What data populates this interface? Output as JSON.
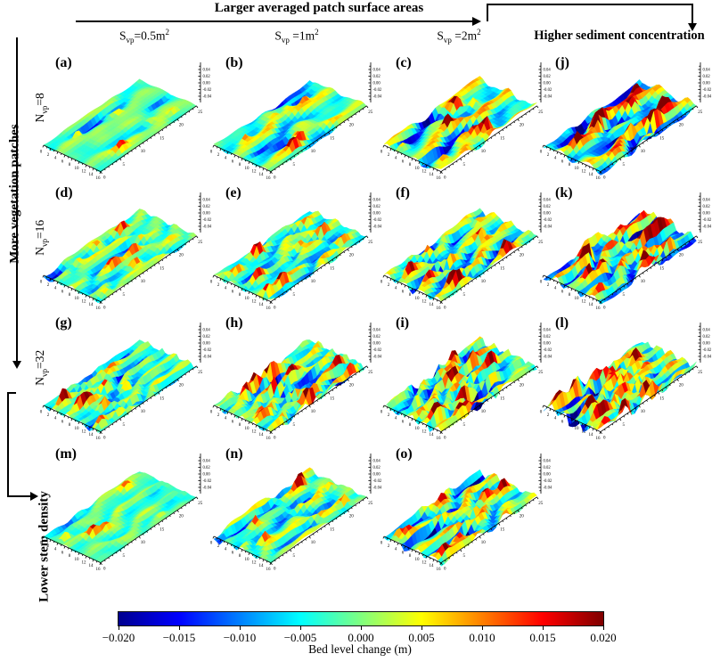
{
  "annotations": {
    "top": "Larger averaged patch surface areas",
    "right": "Higher sediment concentration",
    "left": "More vegetation patches",
    "bottom_left": "Lower stem density"
  },
  "col_headers": [
    {
      "pre": "S",
      "sub": "vp",
      "mid": "=0.5m",
      "sup": "2"
    },
    {
      "pre": "S",
      "sub": "vp",
      "mid": " =1m",
      "sup": "2"
    },
    {
      "pre": "S",
      "sub": "vp",
      "mid": " =2m",
      "sup": "2"
    }
  ],
  "row_headers": [
    {
      "pre": "N",
      "sub": "vp",
      "mid": "=8"
    },
    {
      "pre": "N",
      "sub": "vp",
      "mid": "=16"
    },
    {
      "pre": "N",
      "sub": "vp",
      "mid": "=32"
    }
  ],
  "axes": {
    "x_ticks": [
      "0",
      "2",
      "4",
      "6",
      "8",
      "10",
      "12",
      "14",
      "16"
    ],
    "y_ticks": [
      "0",
      "5",
      "10",
      "15",
      "20",
      "25"
    ],
    "z_ticks": [
      "0.04",
      "0.02",
      "0.00",
      "-0.02",
      "-0.04"
    ]
  },
  "colorbar": {
    "ticks": [
      "−0.020",
      "−0.015",
      "−0.010",
      "−0.005",
      "0.000",
      "0.005",
      "0.010",
      "0.015",
      "0.020"
    ],
    "label": "Bed level change (m)",
    "colormap": "jet",
    "end_colors": {
      "min": "#00008f",
      "max": "#7f0000"
    }
  },
  "panels": [
    {
      "id": "a",
      "label": "(a)",
      "row": 0,
      "col": 0,
      "amp": 0.3,
      "freq": 2.05,
      "spots": 6,
      "pits": 3,
      "seed": 11
    },
    {
      "id": "b",
      "label": "(b)",
      "row": 0,
      "col": 1,
      "amp": 0.5,
      "freq": 2.05,
      "spots": 7,
      "pits": 4,
      "seed": 22
    },
    {
      "id": "c",
      "label": "(c)",
      "row": 0,
      "col": 2,
      "amp": 0.8,
      "freq": 2.1,
      "spots": 8,
      "pits": 4,
      "seed": 33
    },
    {
      "id": "j",
      "label": "(j)",
      "row": 0,
      "col": 3,
      "amp": 1.05,
      "freq": 2.1,
      "spots": 10,
      "pits": 5,
      "seed": 44
    },
    {
      "id": "d",
      "label": "(d)",
      "row": 1,
      "col": 0,
      "amp": 0.45,
      "freq": 3.1,
      "spots": 9,
      "pits": 5,
      "seed": 55
    },
    {
      "id": "e",
      "label": "(e)",
      "row": 1,
      "col": 1,
      "amp": 0.62,
      "freq": 3.1,
      "spots": 10,
      "pits": 6,
      "seed": 66
    },
    {
      "id": "f",
      "label": "(f)",
      "row": 1,
      "col": 2,
      "amp": 0.88,
      "freq": 3.2,
      "spots": 11,
      "pits": 6,
      "seed": 77
    },
    {
      "id": "k",
      "label": "(k)",
      "row": 1,
      "col": 3,
      "amp": 1.08,
      "freq": 3.2,
      "spots": 13,
      "pits": 6,
      "seed": 88
    },
    {
      "id": "g",
      "label": "(g)",
      "row": 2,
      "col": 0,
      "amp": 0.6,
      "freq": 4.4,
      "spots": 10,
      "pits": 7,
      "seed": 99
    },
    {
      "id": "h",
      "label": "(h)",
      "row": 2,
      "col": 1,
      "amp": 0.9,
      "freq": 4.4,
      "spots": 12,
      "pits": 7,
      "seed": 110
    },
    {
      "id": "i",
      "label": "(i)",
      "row": 2,
      "col": 2,
      "amp": 1.0,
      "freq": 4.5,
      "spots": 12,
      "pits": 7,
      "seed": 121
    },
    {
      "id": "l",
      "label": "(l)",
      "row": 2,
      "col": 3,
      "amp": 1.15,
      "freq": 4.5,
      "spots": 15,
      "pits": 7,
      "seed": 132
    },
    {
      "id": "m",
      "label": "(m)",
      "row": 3,
      "col": 0,
      "amp": 0.32,
      "freq": 3.0,
      "spots": 5,
      "pits": 3,
      "seed": 143
    },
    {
      "id": "n",
      "label": "(n)",
      "row": 3,
      "col": 1,
      "amp": 0.62,
      "freq": 3.0,
      "spots": 7,
      "pits": 5,
      "seed": 154
    },
    {
      "id": "o",
      "label": "(o)",
      "row": 3,
      "col": 2,
      "amp": 0.88,
      "freq": 3.1,
      "spots": 8,
      "pits": 5,
      "seed": 165
    }
  ],
  "chart_data": {
    "type": "heatmap",
    "note": "4x4 grid of fifteen 3D bed-morphology surface plots; color = bed level change (jet colormap)",
    "x_axis": {
      "range": [
        0,
        16
      ],
      "ticks": [
        0,
        2,
        4,
        6,
        8,
        10,
        12,
        14,
        16
      ]
    },
    "y_axis": {
      "range": [
        0,
        25
      ],
      "ticks": [
        0,
        5,
        10,
        15,
        20,
        25
      ]
    },
    "z_axis": {
      "label": "Bed level change (m)",
      "range": [
        -0.04,
        0.04
      ],
      "ticks": [
        0.04,
        0.02,
        0.0,
        -0.02,
        -0.04
      ]
    },
    "colorbar": {
      "range": [
        -0.02,
        0.02
      ],
      "tick_step": 0.005,
      "colormap": "jet"
    },
    "factors": {
      "columns_1_to_3": "averaged patch surface area S_vp = 0.5, 1, 2 m^2 (increasing left to right)",
      "column_4": "higher sediment concentration",
      "rows_1_to_3": "number of vegetation patches N_vp = 8, 16, 32 (increasing top to bottom)",
      "row_4": "lower stem density"
    },
    "panels": [
      {
        "label": "(a)",
        "n_vp": 8,
        "s_vp_m2": 0.5,
        "condition": "baseline",
        "relative_bed_change_intensity": 0.3
      },
      {
        "label": "(b)",
        "n_vp": 8,
        "s_vp_m2": 1,
        "condition": "baseline",
        "relative_bed_change_intensity": 0.5
      },
      {
        "label": "(c)",
        "n_vp": 8,
        "s_vp_m2": 2,
        "condition": "baseline",
        "relative_bed_change_intensity": 0.8
      },
      {
        "label": "(j)",
        "n_vp": 8,
        "s_vp_m2": null,
        "condition": "higher sediment concentration",
        "relative_bed_change_intensity": 1.05
      },
      {
        "label": "(d)",
        "n_vp": 16,
        "s_vp_m2": 0.5,
        "condition": "baseline",
        "relative_bed_change_intensity": 0.45
      },
      {
        "label": "(e)",
        "n_vp": 16,
        "s_vp_m2": 1,
        "condition": "baseline",
        "relative_bed_change_intensity": 0.62
      },
      {
        "label": "(f)",
        "n_vp": 16,
        "s_vp_m2": 2,
        "condition": "baseline",
        "relative_bed_change_intensity": 0.88
      },
      {
        "label": "(k)",
        "n_vp": 16,
        "s_vp_m2": null,
        "condition": "higher sediment concentration",
        "relative_bed_change_intensity": 1.08
      },
      {
        "label": "(g)",
        "n_vp": 32,
        "s_vp_m2": 0.5,
        "condition": "baseline",
        "relative_bed_change_intensity": 0.6
      },
      {
        "label": "(h)",
        "n_vp": 32,
        "s_vp_m2": 1,
        "condition": "baseline",
        "relative_bed_change_intensity": 0.9
      },
      {
        "label": "(i)",
        "n_vp": 32,
        "s_vp_m2": 2,
        "condition": "baseline",
        "relative_bed_change_intensity": 1.0
      },
      {
        "label": "(l)",
        "n_vp": 32,
        "s_vp_m2": null,
        "condition": "higher sediment concentration",
        "relative_bed_change_intensity": 1.15
      },
      {
        "label": "(m)",
        "n_vp": null,
        "s_vp_m2": 0.5,
        "condition": "lower stem density",
        "relative_bed_change_intensity": 0.32
      },
      {
        "label": "(n)",
        "n_vp": null,
        "s_vp_m2": 1,
        "condition": "lower stem density",
        "relative_bed_change_intensity": 0.62
      },
      {
        "label": "(o)",
        "n_vp": null,
        "s_vp_m2": 2,
        "condition": "lower stem density",
        "relative_bed_change_intensity": 0.88
      }
    ]
  }
}
